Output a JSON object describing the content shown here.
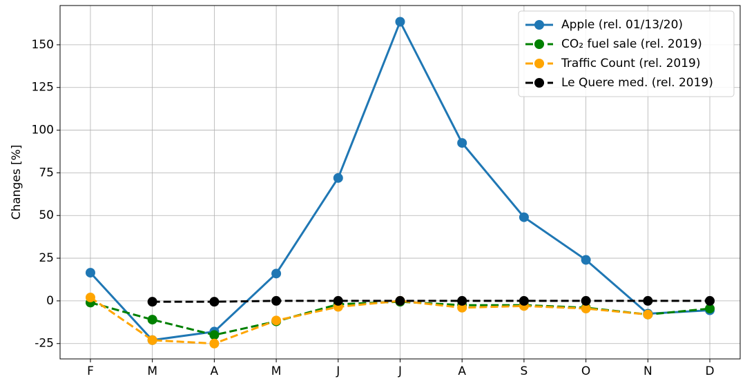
{
  "chart_data": {
    "type": "line",
    "y_label": "Changes [%]",
    "categories": [
      "F",
      "M",
      "A",
      "M",
      "J",
      "J",
      "A",
      "S",
      "O",
      "N",
      "D"
    ],
    "series": [
      {
        "name": "Apple (rel. 01/13/20)",
        "color": "#1f77b4",
        "linestyle": "solid",
        "values": [
          16.5,
          -23,
          -18,
          16,
          72,
          163.5,
          92.5,
          49,
          24,
          -7.5,
          -5.5
        ]
      },
      {
        "name": "CO₂ fuel sale (rel. 2019)",
        "color": "#008000",
        "linestyle": "dashed",
        "values": [
          -1,
          -11,
          -20,
          -12,
          -2,
          -0.5,
          -2.5,
          -2.5,
          -4,
          -8,
          -4.5
        ]
      },
      {
        "name": "Traffic Count (rel. 2019)",
        "color": "#ffa500",
        "linestyle": "dashed",
        "values": [
          2,
          -23,
          -25,
          -11.5,
          -3.5,
          0,
          -4,
          -3,
          -4.5,
          -8,
          null
        ]
      },
      {
        "name": "Le Quere med. (rel. 2019)",
        "color": "#000000",
        "linestyle": "dashed",
        "values": [
          null,
          -0.5,
          -0.5,
          0,
          0,
          0,
          0,
          0,
          0,
          0,
          0
        ]
      }
    ],
    "ylim": [
      -34,
      173
    ],
    "yticks": [
      -25,
      0,
      25,
      50,
      75,
      100,
      125,
      150
    ],
    "grid": true,
    "legend": "upper right"
  }
}
